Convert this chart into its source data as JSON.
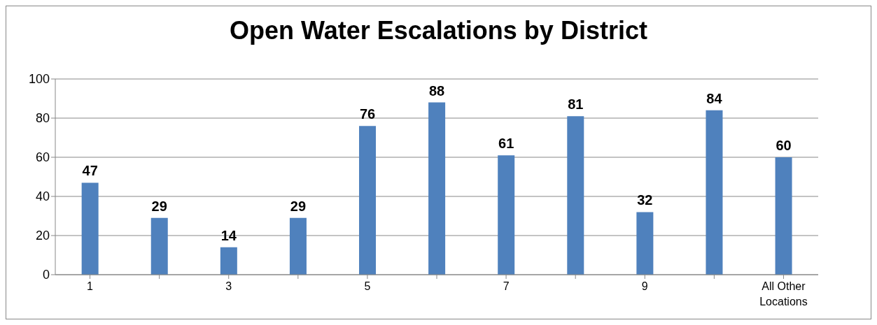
{
  "chart_data": {
    "type": "bar",
    "title": "Open Water Escalations by District",
    "categories": [
      "1",
      null,
      "3",
      null,
      "5",
      null,
      "7",
      null,
      "9",
      null,
      "All Other Locations"
    ],
    "values": [
      47,
      29,
      14,
      29,
      76,
      88,
      61,
      81,
      32,
      84,
      60
    ],
    "color": "#4f81bd",
    "ylim": [
      0,
      100
    ],
    "yticks": [
      0,
      20,
      40,
      60,
      80,
      100
    ],
    "grid": "y",
    "data_labels": true,
    "legend": false
  }
}
